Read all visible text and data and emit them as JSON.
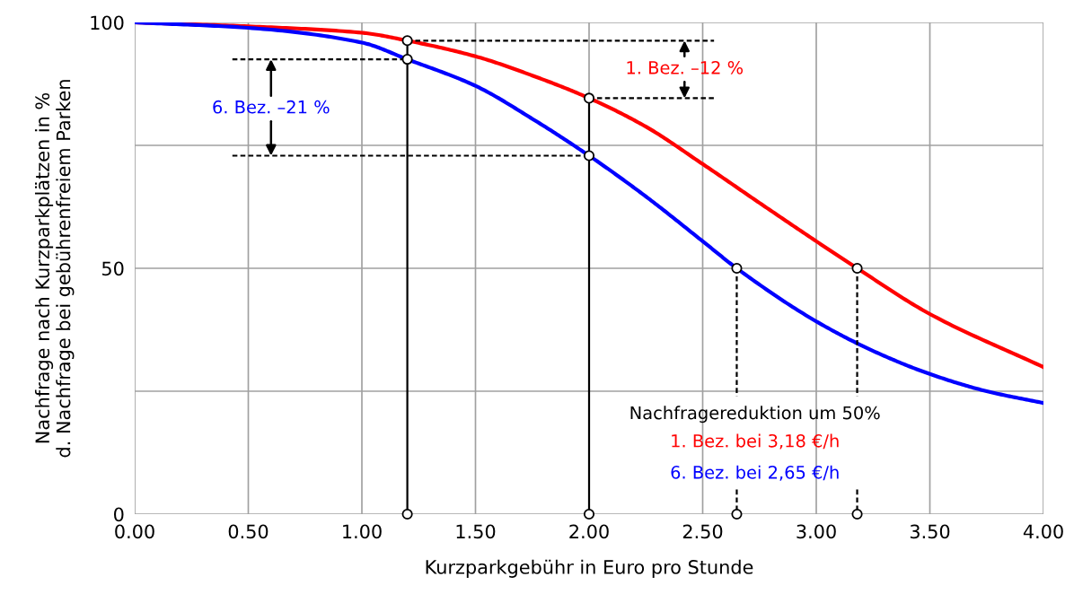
{
  "chart_data": {
    "type": "line",
    "xlabel": "Kurzparkgebühr in Euro pro Stunde",
    "ylabel": "Nachfrage nach Kurzparkplätzen in %\nd. Nachfrage bei gebührenfreiem Parken",
    "xlim": [
      0,
      4
    ],
    "ylim": [
      0,
      100
    ],
    "xticks": [
      {
        "value": 0,
        "label": "0.00"
      },
      {
        "value": 0.5,
        "label": "0.50"
      },
      {
        "value": 1,
        "label": "1.00"
      },
      {
        "value": 1.5,
        "label": "1.50"
      },
      {
        "value": 2,
        "label": "2.00"
      },
      {
        "value": 2.5,
        "label": "2.50"
      },
      {
        "value": 3,
        "label": "3.00"
      },
      {
        "value": 3.5,
        "label": "3.50"
      },
      {
        "value": 4,
        "label": "4.00"
      }
    ],
    "yticks": [
      0,
      {
        "value": 25,
        "label": null
      },
      50,
      {
        "value": 75,
        "label": null
      },
      100
    ],
    "grid": true,
    "legend": false,
    "series": [
      {
        "color": "#ff0000",
        "x": [
          0,
          0.5,
          1.0,
          1.2,
          1.5,
          1.75,
          2.0,
          2.25,
          2.5,
          2.75,
          3.0,
          3.18,
          3.5,
          4.0
        ],
        "values": [
          100,
          99.2,
          97.9,
          96.3,
          93.1,
          89.2,
          84.6,
          78.8,
          71.2,
          63.3,
          55.5,
          50,
          40.7,
          29.9
        ]
      },
      {
        "color": "#0000ff",
        "x": [
          0,
          0.5,
          1.0,
          1.2,
          1.5,
          1.75,
          2.0,
          2.25,
          2.5,
          2.65,
          3.0,
          3.25,
          3.5,
          3.75,
          4.0
        ],
        "values": [
          100,
          98.9,
          95.9,
          92.5,
          87.1,
          80.4,
          72.9,
          64.6,
          55.5,
          50,
          39.2,
          33.2,
          28.5,
          25.0,
          22.6
        ]
      },
      {
        "type": "line",
        "color": "#000000",
        "line_style": "solid",
        "x": [
          1.2,
          1.2
        ],
        "values": [
          0,
          96.3
        ]
      },
      {
        "type": "line",
        "color": "#000000",
        "line_style": "solid",
        "x": [
          2.0,
          2.0
        ],
        "values": [
          0,
          84.6
        ]
      },
      {
        "type": "line",
        "color": "#000000",
        "line_style": "dashed",
        "x": [
          1.2,
          2.55
        ],
        "values": [
          96.3,
          96.3
        ]
      },
      {
        "type": "line",
        "color": "#000000",
        "line_style": "dashed",
        "x": [
          2.0,
          2.55
        ],
        "values": [
          84.6,
          84.6
        ]
      },
      {
        "type": "line",
        "color": "#000000",
        "line_style": "dashed",
        "x": [
          0.43,
          1.2
        ],
        "values": [
          92.5,
          92.5
        ]
      },
      {
        "type": "line",
        "color": "#000000",
        "line_style": "dashed",
        "x": [
          0.43,
          2.0
        ],
        "values": [
          72.9,
          72.9
        ]
      },
      {
        "type": "line",
        "color": "#000000",
        "line_style": "dashed",
        "x": [
          2.65,
          2.65
        ],
        "values": [
          50,
          24
        ]
      },
      {
        "type": "line",
        "color": "#000000",
        "line_style": "dashed",
        "x": [
          3.18,
          3.18
        ],
        "values": [
          50,
          24
        ]
      },
      {
        "type": "line",
        "color": "#000000",
        "line_style": "dashed",
        "x": [
          2.65,
          2.65
        ],
        "values": [
          5,
          0
        ]
      },
      {
        "type": "line",
        "color": "#000000",
        "line_style": "dashed",
        "x": [
          3.18,
          3.18
        ],
        "values": [
          5,
          0
        ]
      },
      {
        "type": "scatter",
        "color": "#000000",
        "marker": "circle",
        "x": [
          1.2,
          2.0,
          1.2,
          2.0,
          2.65,
          3.18,
          1.2,
          2.0,
          2.65,
          3.18
        ],
        "values": [
          96.3,
          84.6,
          92.5,
          72.9,
          50,
          50,
          0,
          0,
          0,
          0
        ]
      }
    ],
    "annotations": [
      {
        "text": "1. Bez. –12 %",
        "x": 2.42,
        "y": 96.3
      },
      {
        "text": "6. Bez. –21 %",
        "x": 0.6,
        "y": 92.5
      },
      "Nachfragereduktion um 50%",
      "1. Bez. bei 3,18 €/h",
      "6. Bez. bei 2,65 €/h"
    ]
  }
}
